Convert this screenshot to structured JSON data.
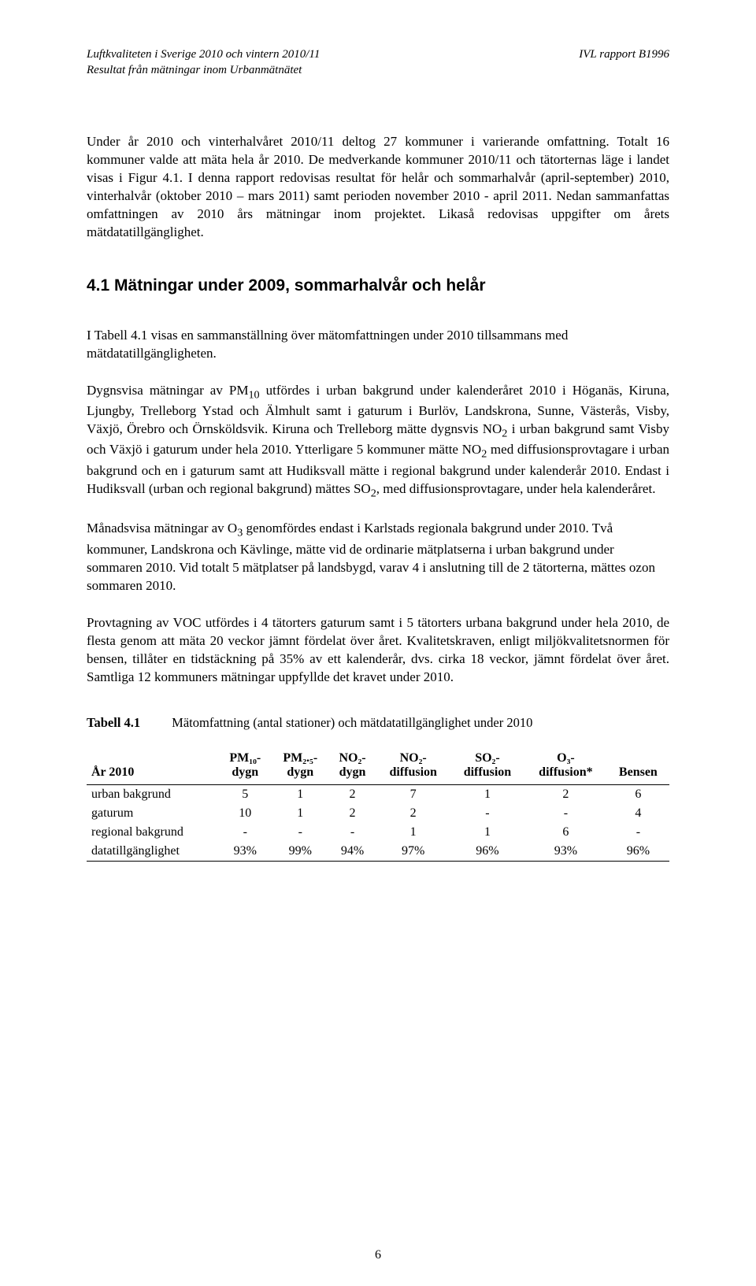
{
  "header": {
    "left_line1": "Luftkvaliteten i Sverige 2010 och vintern 2010/11",
    "left_line2": "Resultat från mätningar inom Urbanmätnätet",
    "right": "IVL rapport B1996"
  },
  "paragraphs": {
    "p1": "Under år 2010 och vinterhalvåret 2010/11 deltog 27 kommuner i varierande omfattning. Totalt 16 kommuner valde att mäta hela år 2010. De medverkande kommuner 2010/11 och tätorternas läge i landet visas i Figur 4.1. I denna rapport redovisas resultat för helår och sommarhalvår (april-september) 2010, vinterhalvår (oktober 2010 – mars 2011) samt perioden november 2010 - april 2011. Nedan sammanfattas omfattningen av 2010 års mätningar inom projektet. Likaså redovisas uppgifter om årets mätdatatillgänglighet.",
    "heading": "4.1 Mätningar under 2009, sommarhalvår och helår",
    "p2": "I Tabell 4.1 visas en sammanställning över mätomfattningen under 2010 tillsammans med mätdatatillgängligheten.",
    "p3_a": "Dygnsvisa mätningar av PM",
    "p3_b": " utfördes i urban bakgrund under kalenderåret 2010 i Höganäs, Kiruna, Ljungby, Trelleborg Ystad och Älmhult samt i gaturum i Burlöv, Landskrona, Sunne, Västerås, Visby, Växjö, Örebro och Örnsköldsvik. Kiruna och Trelleborg mätte dygnsvis NO",
    "p3_c": " i urban bakgrund samt Visby och Växjö i gaturum under hela 2010. Ytterligare 5 kommuner mätte NO",
    "p3_d": " med diffusionsprovtagare i urban bakgrund och en i gaturum samt att Hudiksvall mätte i regional bakgrund under kalenderår 2010. Endast i Hudiksvall (urban och regional bakgrund) mättes SO",
    "p3_e": ", med diffusionsprovtagare, under hela kalenderåret.",
    "p4_a": "Månadsvisa mätningar av O",
    "p4_b": " genomfördes endast i Karlstads regionala bakgrund under 2010. Två kommuner, Landskrona och Kävlinge, mätte vid de ordinarie mätplatserna i urban bakgrund under sommaren 2010. Vid totalt 5 mätplatser på landsbygd, varav 4 i anslutning till de 2 tätorterna, mättes ozon sommaren 2010.",
    "p5": "Provtagning av VOC utfördes i 4 tätorters gaturum samt i 5 tätorters urbana bakgrund under hela 2010, de flesta genom att mäta 20 veckor jämnt fördelat över året. Kvalitetskraven, enligt miljökvalitetsnormen för bensen, tillåter en tidstäckning på 35% av ett kalenderår, dvs. cirka 18 veckor, jämnt fördelat över året. Samtliga 12 kommuners mätningar uppfyllde det kravet under 2010."
  },
  "table": {
    "caption_label": "Tabell 4.1",
    "caption_text": "Mätomfattning (antal stationer) och mätdatatillgänglighet under 2010",
    "columns": [
      {
        "l1": "",
        "l2": "År 2010"
      },
      {
        "l1": "PM₁₀-",
        "l2": "dygn"
      },
      {
        "l1": "PM₂.₅-",
        "l2": "dygn"
      },
      {
        "l1": "NO₂-",
        "l2": "dygn"
      },
      {
        "l1": "NO₂-",
        "l2": "diffusion"
      },
      {
        "l1": "SO₂-",
        "l2": "diffusion"
      },
      {
        "l1": "O₃-",
        "l2": "diffusion*"
      },
      {
        "l1": "",
        "l2": "Bensen"
      }
    ],
    "rows": [
      {
        "label": "urban bakgrund",
        "cells": [
          "5",
          "1",
          "2",
          "7",
          "1",
          "2",
          "6"
        ]
      },
      {
        "label": "gaturum",
        "cells": [
          "10",
          "1",
          "2",
          "2",
          "-",
          "-",
          "4"
        ]
      }
    ],
    "gap_rows": [
      {
        "label": "regional bakgrund",
        "cells": [
          "-",
          "-",
          "-",
          "1",
          "1",
          "6",
          "-"
        ]
      },
      {
        "label": "datatillgänglighet",
        "cells": [
          "93%",
          "99%",
          "94%",
          "97%",
          "96%",
          "93%",
          "96%"
        ]
      }
    ]
  },
  "page_number": "6"
}
